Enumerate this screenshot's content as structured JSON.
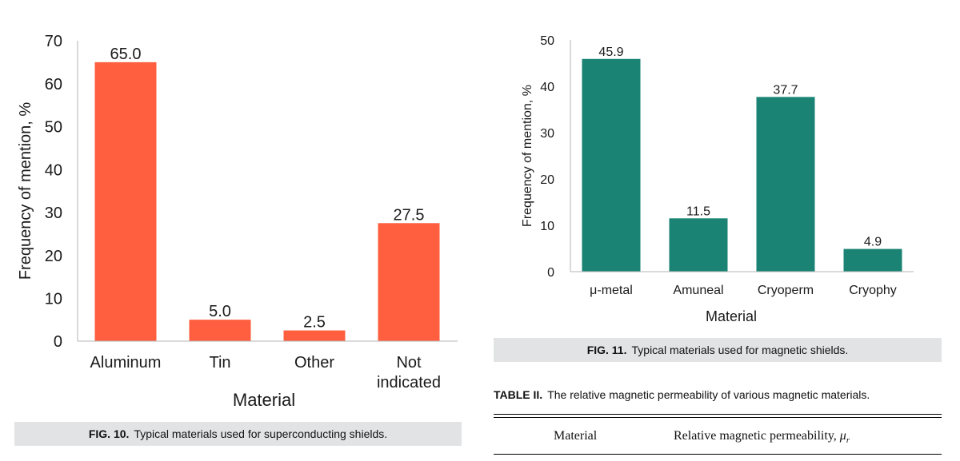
{
  "chart_data": [
    {
      "type": "bar",
      "categories": [
        "Aluminum",
        "Tin",
        "Other",
        "Not indicated"
      ],
      "category_lines": [
        [
          "Aluminum"
        ],
        [
          "Tin"
        ],
        [
          "Other"
        ],
        [
          "Not",
          "indicated"
        ]
      ],
      "values": [
        65.0,
        5.0,
        2.5,
        27.5
      ],
      "value_labels": [
        "65.0",
        "5.0",
        "2.5",
        "27.5"
      ],
      "xlabel": "Material",
      "ylabel": "Frequency of mention, %",
      "ylim": [
        0,
        70
      ],
      "yticks": [
        0,
        10,
        20,
        30,
        40,
        50,
        60,
        70
      ],
      "color": "#ff5f3f",
      "grid": false
    },
    {
      "type": "bar",
      "categories": [
        "μ-metal",
        "Amuneal",
        "Cryoperm",
        "Cryophy"
      ],
      "category_lines": [
        [
          "μ-metal"
        ],
        [
          "Amuneal"
        ],
        [
          "Cryoperm"
        ],
        [
          "Cryophy"
        ]
      ],
      "values": [
        45.9,
        11.5,
        37.7,
        4.9
      ],
      "value_labels": [
        "45.9",
        "11.5",
        "37.7",
        "4.9"
      ],
      "xlabel": "Material",
      "ylabel": "Frequency of mention, %",
      "ylim": [
        0,
        50
      ],
      "yticks": [
        0,
        10,
        20,
        30,
        40,
        50
      ],
      "color": "#1a8374",
      "grid": false
    }
  ],
  "captions": {
    "fig10": {
      "label": "FIG. 10.",
      "text": "Typical materials used for superconducting shields."
    },
    "fig11": {
      "label": "FIG. 11.",
      "text": "Typical materials used for magnetic shields."
    }
  },
  "table": {
    "label": "TABLE II.",
    "caption": "The relative magnetic permeability of various magnetic materials.",
    "headers": [
      "Material",
      "Relative magnetic permeability, μr"
    ]
  }
}
